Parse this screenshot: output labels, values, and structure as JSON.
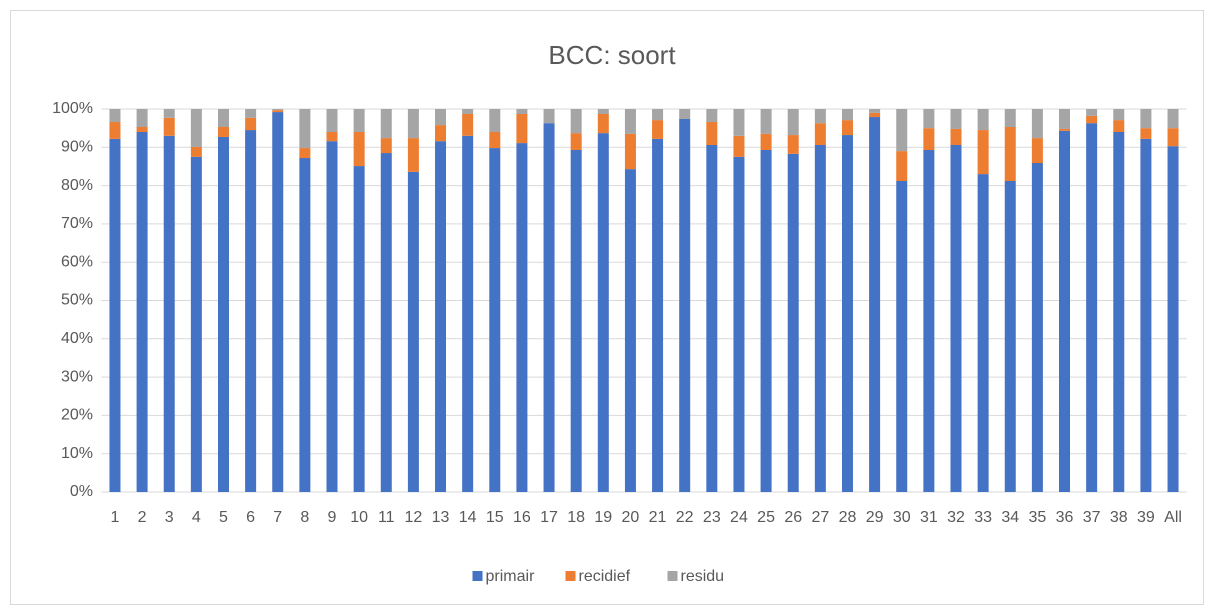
{
  "chart_data": {
    "type": "stacked_bar",
    "title": "BCC: soort",
    "categories": [
      "1",
      "2",
      "3",
      "4",
      "5",
      "6",
      "7",
      "8",
      "9",
      "10",
      "11",
      "12",
      "13",
      "14",
      "15",
      "16",
      "17",
      "18",
      "19",
      "20",
      "21",
      "22",
      "23",
      "24",
      "25",
      "26",
      "27",
      "28",
      "29",
      "30",
      "31",
      "32",
      "33",
      "34",
      "35",
      "36",
      "37",
      "38",
      "39",
      "All"
    ],
    "series": [
      {
        "name": "primair",
        "color": "#4472c4",
        "values": [
          92.2,
          94.0,
          93.0,
          87.5,
          92.7,
          94.5,
          99.2,
          87.2,
          91.6,
          85.1,
          88.5,
          83.6,
          91.6,
          93.0,
          89.8,
          91.1,
          96.3,
          89.3,
          93.7,
          84.3,
          92.2,
          97.4,
          90.6,
          87.5,
          89.3,
          88.3,
          90.6,
          93.2,
          97.9,
          81.2,
          89.3,
          90.6,
          83.0,
          81.2,
          85.9,
          94.3,
          96.3,
          94.0,
          92.2,
          90.3
        ]
      },
      {
        "name": "recidief",
        "color": "#ed7d31",
        "values": [
          4.4,
          1.3,
          4.7,
          2.6,
          2.6,
          3.2,
          0.5,
          2.6,
          2.4,
          8.9,
          3.9,
          8.8,
          4.2,
          5.7,
          4.2,
          7.6,
          0,
          4.4,
          5.0,
          9.2,
          4.9,
          0,
          6.0,
          5.5,
          4.2,
          4.9,
          5.7,
          3.9,
          1.1,
          7.8,
          5.7,
          4.2,
          11.5,
          14.1,
          6.5,
          0.5,
          1.9,
          3.1,
          2.8,
          4.7
        ]
      },
      {
        "name": "residu",
        "color": "#a5a5a5",
        "values": [
          3.4,
          4.7,
          2.3,
          9.9,
          4.7,
          2.3,
          0.3,
          10.2,
          6.0,
          6.0,
          7.6,
          7.6,
          4.2,
          1.3,
          6.0,
          1.3,
          3.7,
          6.3,
          1.3,
          6.5,
          2.9,
          2.6,
          3.4,
          7.0,
          6.5,
          6.8,
          3.7,
          2.9,
          1.0,
          11.0,
          5.0,
          5.2,
          5.5,
          4.7,
          7.6,
          5.2,
          1.8,
          2.9,
          5.0,
          5.0
        ]
      }
    ],
    "ylim": [
      0,
      100
    ],
    "yticks": [
      {
        "value": 0,
        "label": "0%"
      },
      {
        "value": 10,
        "label": "10%"
      },
      {
        "value": 20,
        "label": "20%"
      },
      {
        "value": 30,
        "label": "30%"
      },
      {
        "value": 40,
        "label": "40%"
      },
      {
        "value": 50,
        "label": "50%"
      },
      {
        "value": 60,
        "label": "60%"
      },
      {
        "value": 70,
        "label": "70%"
      },
      {
        "value": 80,
        "label": "80%"
      },
      {
        "value": 90,
        "label": "90%"
      },
      {
        "value": 100,
        "label": "100%"
      }
    ],
    "grid": true,
    "legend": "bottom"
  }
}
